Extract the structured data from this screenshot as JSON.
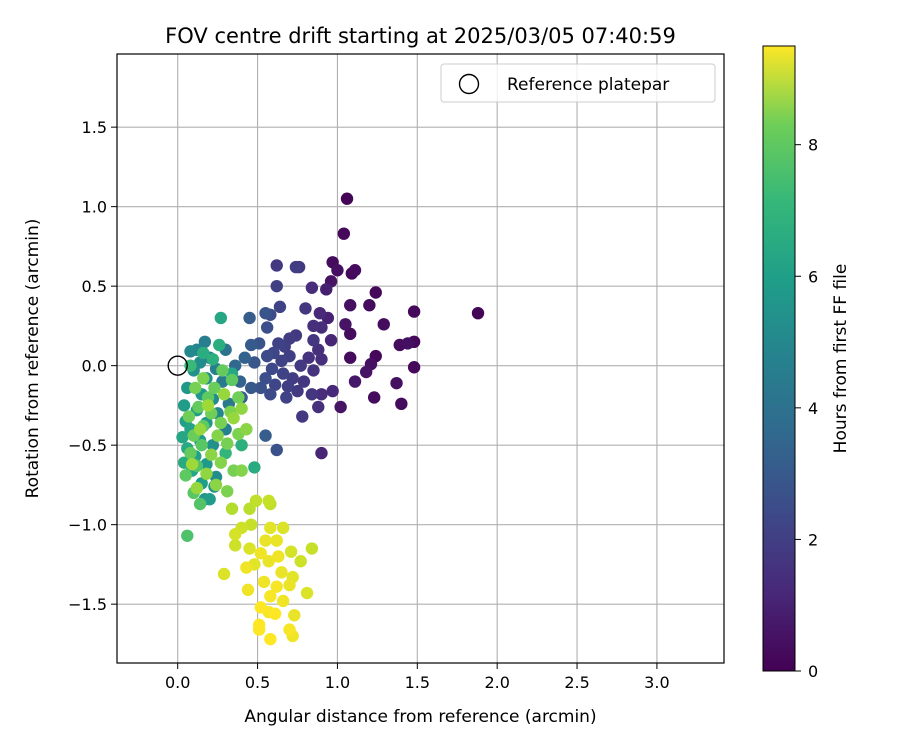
{
  "chart_data": {
    "type": "scatter",
    "title": "FOV centre drift starting at 2025/03/05 07:40:59",
    "xlabel": "Angular distance from reference (arcmin)",
    "ylabel": "Rotation from reference (arcmin)",
    "xlim": [
      -0.38,
      3.42
    ],
    "ylim": [
      -1.87,
      1.96
    ],
    "xticks": [
      "0.0",
      "0.5",
      "1.0",
      "1.5",
      "2.0",
      "2.5",
      "3.0"
    ],
    "xtick_values": [
      0,
      0.5,
      1,
      1.5,
      2,
      2.5,
      3
    ],
    "yticks": [
      "−1.5",
      "−1.0",
      "−0.5",
      "0.0",
      "0.5",
      "1.0",
      "1.5"
    ],
    "ytick_values": [
      -1.5,
      -1,
      -0.5,
      0,
      0.5,
      1,
      1.5
    ],
    "grid": true,
    "legend": {
      "position": "top-right",
      "entries": [
        "Reference platepar"
      ]
    },
    "reference_point": {
      "x": 0,
      "y": 0
    },
    "colorbar": {
      "label": "Hours from first FF file",
      "colormap": "viridis",
      "range": [
        0,
        9.5
      ],
      "ticks": [
        "0",
        "2",
        "4",
        "6",
        "8"
      ],
      "tick_values": [
        0,
        2,
        4,
        6,
        8
      ]
    },
    "points": [
      {
        "x": 1.06,
        "y": 1.05,
        "h": 0.1
      },
      {
        "x": 1.04,
        "y": 0.83,
        "h": 0.2
      },
      {
        "x": 0.97,
        "y": 0.65,
        "h": 0.3
      },
      {
        "x": 1.0,
        "y": 0.6,
        "h": 0.4
      },
      {
        "x": 1.09,
        "y": 0.58,
        "h": 0.2
      },
      {
        "x": 1.11,
        "y": 0.6,
        "h": 0.3
      },
      {
        "x": 0.96,
        "y": 0.53,
        "h": 0.5
      },
      {
        "x": 0.93,
        "y": 0.48,
        "h": 0.8
      },
      {
        "x": 1.24,
        "y": 0.46,
        "h": 0.2
      },
      {
        "x": 1.2,
        "y": 0.38,
        "h": 0.3
      },
      {
        "x": 1.08,
        "y": 0.38,
        "h": 0.4
      },
      {
        "x": 1.88,
        "y": 0.33,
        "h": 0.1
      },
      {
        "x": 1.48,
        "y": 0.34,
        "h": 0.2
      },
      {
        "x": 1.29,
        "y": 0.26,
        "h": 0.3
      },
      {
        "x": 1.05,
        "y": 0.26,
        "h": 0.5
      },
      {
        "x": 1.08,
        "y": 0.2,
        "h": 0.3
      },
      {
        "x": 1.48,
        "y": 0.15,
        "h": 0.2
      },
      {
        "x": 1.44,
        "y": 0.14,
        "h": 0.4
      },
      {
        "x": 1.39,
        "y": 0.13,
        "h": 0.3
      },
      {
        "x": 1.24,
        "y": 0.06,
        "h": 0.2
      },
      {
        "x": 1.08,
        "y": 0.05,
        "h": 0.3
      },
      {
        "x": 1.21,
        "y": 0.01,
        "h": 0.4
      },
      {
        "x": 1.48,
        "y": -0.01,
        "h": 0.2
      },
      {
        "x": 1.18,
        "y": -0.04,
        "h": 0.5
      },
      {
        "x": 1.11,
        "y": -0.1,
        "h": 0.6
      },
      {
        "x": 1.37,
        "y": -0.11,
        "h": 0.4
      },
      {
        "x": 1.23,
        "y": -0.2,
        "h": 0.3
      },
      {
        "x": 1.4,
        "y": -0.24,
        "h": 0.3
      },
      {
        "x": 1.02,
        "y": -0.26,
        "h": 0.5
      },
      {
        "x": 0.9,
        "y": -0.55,
        "h": 1.0
      },
      {
        "x": 0.62,
        "y": 0.63,
        "h": 1.6
      },
      {
        "x": 0.76,
        "y": 0.62,
        "h": 1.5
      },
      {
        "x": 0.74,
        "y": 0.62,
        "h": 1.7
      },
      {
        "x": 0.62,
        "y": 0.5,
        "h": 1.8
      },
      {
        "x": 0.84,
        "y": 0.49,
        "h": 1.2
      },
      {
        "x": 0.64,
        "y": 0.37,
        "h": 1.9
      },
      {
        "x": 0.8,
        "y": 0.36,
        "h": 1.5
      },
      {
        "x": 0.89,
        "y": 0.33,
        "h": 1.1
      },
      {
        "x": 0.94,
        "y": 0.3,
        "h": 0.9
      },
      {
        "x": 0.55,
        "y": 0.33,
        "h": 2.5
      },
      {
        "x": 0.58,
        "y": 0.32,
        "h": 2.2
      },
      {
        "x": 0.45,
        "y": 0.3,
        "h": 2.8
      },
      {
        "x": 0.85,
        "y": 0.25,
        "h": 1.3
      },
      {
        "x": 0.9,
        "y": 0.24,
        "h": 1.2
      },
      {
        "x": 0.56,
        "y": 0.24,
        "h": 2.3
      },
      {
        "x": 0.74,
        "y": 0.19,
        "h": 1.6
      },
      {
        "x": 0.7,
        "y": 0.17,
        "h": 1.7
      },
      {
        "x": 0.85,
        "y": 0.16,
        "h": 1.5
      },
      {
        "x": 0.96,
        "y": 0.16,
        "h": 1.0
      },
      {
        "x": 0.63,
        "y": 0.14,
        "h": 1.9
      },
      {
        "x": 0.51,
        "y": 0.14,
        "h": 2.5
      },
      {
        "x": 0.46,
        "y": 0.13,
        "h": 2.7
      },
      {
        "x": 0.67,
        "y": 0.12,
        "h": 1.8
      },
      {
        "x": 0.88,
        "y": 0.1,
        "h": 1.3
      },
      {
        "x": 0.6,
        "y": 0.08,
        "h": 2.0
      },
      {
        "x": 0.56,
        "y": 0.06,
        "h": 2.2
      },
      {
        "x": 0.7,
        "y": 0.06,
        "h": 1.8
      },
      {
        "x": 0.82,
        "y": 0.05,
        "h": 1.4
      },
      {
        "x": 0.9,
        "y": 0.04,
        "h": 1.3
      },
      {
        "x": 0.65,
        "y": 0.03,
        "h": 1.9
      },
      {
        "x": 0.48,
        "y": 0.02,
        "h": 2.6
      },
      {
        "x": 0.77,
        "y": 0.0,
        "h": 1.6
      },
      {
        "x": 0.59,
        "y": -0.02,
        "h": 2.1
      },
      {
        "x": 0.85,
        "y": -0.03,
        "h": 1.4
      },
      {
        "x": 0.66,
        "y": -0.05,
        "h": 1.9
      },
      {
        "x": 0.55,
        "y": -0.08,
        "h": 2.3
      },
      {
        "x": 0.72,
        "y": -0.08,
        "h": 1.7
      },
      {
        "x": 0.79,
        "y": -0.1,
        "h": 1.5
      },
      {
        "x": 0.61,
        "y": -0.12,
        "h": 2.0
      },
      {
        "x": 0.69,
        "y": -0.13,
        "h": 1.8
      },
      {
        "x": 0.52,
        "y": -0.14,
        "h": 2.4
      },
      {
        "x": 0.75,
        "y": -0.16,
        "h": 1.6
      },
      {
        "x": 0.84,
        "y": -0.18,
        "h": 1.5
      },
      {
        "x": 0.58,
        "y": -0.18,
        "h": 2.2
      },
      {
        "x": 0.68,
        "y": -0.2,
        "h": 1.9
      },
      {
        "x": 0.97,
        "y": -0.16,
        "h": 1.1
      },
      {
        "x": 0.9,
        "y": -0.18,
        "h": 1.2
      },
      {
        "x": 0.88,
        "y": -0.26,
        "h": 1.3
      },
      {
        "x": 0.78,
        "y": -0.32,
        "h": 1.6
      },
      {
        "x": 0.46,
        "y": -0.14,
        "h": 2.6
      },
      {
        "x": 0.4,
        "y": -0.2,
        "h": 2.8
      },
      {
        "x": 0.39,
        "y": -0.1,
        "h": 3.0
      },
      {
        "x": 0.42,
        "y": 0.05,
        "h": 3.0
      },
      {
        "x": 0.36,
        "y": 0.0,
        "h": 3.2
      },
      {
        "x": 0.3,
        "y": 0.1,
        "h": 3.6
      },
      {
        "x": 0.55,
        "y": -0.44,
        "h": 2.8
      },
      {
        "x": 0.62,
        "y": -0.53,
        "h": 2.4
      },
      {
        "x": 0.17,
        "y": 0.15,
        "h": 4.0
      },
      {
        "x": 0.12,
        "y": 0.1,
        "h": 4.3
      },
      {
        "x": 0.08,
        "y": 0.09,
        "h": 4.5
      },
      {
        "x": 0.2,
        "y": 0.05,
        "h": 4.2
      },
      {
        "x": 0.14,
        "y": 0.02,
        "h": 4.6
      },
      {
        "x": 0.24,
        "y": -0.02,
        "h": 4.1
      },
      {
        "x": 0.1,
        "y": -0.03,
        "h": 4.8
      },
      {
        "x": 0.18,
        "y": -0.08,
        "h": 4.7
      },
      {
        "x": 0.28,
        "y": -0.1,
        "h": 3.9
      },
      {
        "x": 0.06,
        "y": -0.14,
        "h": 5.0
      },
      {
        "x": 0.15,
        "y": -0.18,
        "h": 5.1
      },
      {
        "x": 0.22,
        "y": -0.21,
        "h": 4.6
      },
      {
        "x": 0.32,
        "y": -0.24,
        "h": 3.8
      },
      {
        "x": 0.04,
        "y": -0.25,
        "h": 5.2
      },
      {
        "x": 0.12,
        "y": -0.28,
        "h": 5.3
      },
      {
        "x": 0.25,
        "y": -0.3,
        "h": 4.4
      },
      {
        "x": 0.05,
        "y": -0.35,
        "h": 5.4
      },
      {
        "x": 0.18,
        "y": -0.36,
        "h": 5.0
      },
      {
        "x": 0.08,
        "y": -0.4,
        "h": 5.5
      },
      {
        "x": 0.3,
        "y": -0.4,
        "h": 4.2
      },
      {
        "x": 0.03,
        "y": -0.45,
        "h": 5.6
      },
      {
        "x": 0.14,
        "y": -0.47,
        "h": 5.2
      },
      {
        "x": 0.22,
        "y": -0.5,
        "h": 4.8
      },
      {
        "x": 0.06,
        "y": -0.52,
        "h": 5.7
      },
      {
        "x": 0.11,
        "y": -0.57,
        "h": 5.4
      },
      {
        "x": 0.04,
        "y": -0.61,
        "h": 5.8
      },
      {
        "x": 0.18,
        "y": -0.62,
        "h": 5.1
      },
      {
        "x": 0.09,
        "y": -0.66,
        "h": 5.6
      },
      {
        "x": 0.24,
        "y": -0.7,
        "h": 4.6
      },
      {
        "x": 0.15,
        "y": -0.74,
        "h": 5.3
      },
      {
        "x": 0.23,
        "y": -0.76,
        "h": 4.8
      },
      {
        "x": 0.17,
        "y": -0.84,
        "h": 5.0
      },
      {
        "x": 0.2,
        "y": -0.84,
        "h": 5.2
      },
      {
        "x": 0.27,
        "y": 0.3,
        "h": 5.6
      },
      {
        "x": 0.16,
        "y": 0.08,
        "h": 5.9
      },
      {
        "x": 0.22,
        "y": 0.04,
        "h": 6.0
      },
      {
        "x": 0.08,
        "y": 0.0,
        "h": 6.4
      },
      {
        "x": 0.34,
        "y": -0.05,
        "h": 5.6
      },
      {
        "x": 0.26,
        "y": 0.13,
        "h": 5.9
      },
      {
        "x": 0.4,
        "y": -0.5,
        "h": 6.0
      },
      {
        "x": 0.48,
        "y": -0.64,
        "h": 5.8
      },
      {
        "x": 0.3,
        "y": -0.55,
        "h": 6.2
      },
      {
        "x": 0.06,
        "y": -1.07,
        "h": 6.8
      },
      {
        "x": 0.14,
        "y": -0.87,
        "h": 6.9
      },
      {
        "x": 0.1,
        "y": -0.8,
        "h": 7.0
      },
      {
        "x": 0.05,
        "y": -0.69,
        "h": 7.1
      },
      {
        "x": 0.12,
        "y": -0.63,
        "h": 6.9
      },
      {
        "x": 0.08,
        "y": -0.55,
        "h": 7.2
      },
      {
        "x": 0.15,
        "y": -0.5,
        "h": 7.0
      },
      {
        "x": 0.1,
        "y": -0.44,
        "h": 7.3
      },
      {
        "x": 0.16,
        "y": -0.38,
        "h": 7.1
      },
      {
        "x": 0.07,
        "y": -0.32,
        "h": 7.4
      },
      {
        "x": 0.13,
        "y": -0.26,
        "h": 7.2
      },
      {
        "x": 0.19,
        "y": -0.2,
        "h": 7.1
      },
      {
        "x": 0.11,
        "y": -0.14,
        "h": 7.5
      },
      {
        "x": 0.16,
        "y": -0.08,
        "h": 7.6
      },
      {
        "x": 0.23,
        "y": -0.14,
        "h": 7.3
      },
      {
        "x": 0.28,
        "y": -0.03,
        "h": 7.2
      },
      {
        "x": 0.34,
        "y": -0.09,
        "h": 7.1
      },
      {
        "x": 0.21,
        "y": -0.3,
        "h": 7.4
      },
      {
        "x": 0.27,
        "y": -0.36,
        "h": 7.5
      },
      {
        "x": 0.33,
        "y": -0.29,
        "h": 7.6
      },
      {
        "x": 0.38,
        "y": -0.2,
        "h": 7.4
      },
      {
        "x": 0.25,
        "y": -0.44,
        "h": 7.7
      },
      {
        "x": 0.31,
        "y": -0.49,
        "h": 7.5
      },
      {
        "x": 0.38,
        "y": -0.43,
        "h": 7.6
      },
      {
        "x": 0.21,
        "y": -0.56,
        "h": 7.8
      },
      {
        "x": 0.27,
        "y": -0.61,
        "h": 7.7
      },
      {
        "x": 0.35,
        "y": -0.66,
        "h": 7.5
      },
      {
        "x": 0.18,
        "y": -0.68,
        "h": 7.9
      },
      {
        "x": 0.24,
        "y": -0.75,
        "h": 7.8
      },
      {
        "x": 0.31,
        "y": -0.79,
        "h": 7.6
      },
      {
        "x": 0.4,
        "y": -0.66,
        "h": 7.7
      },
      {
        "x": 0.43,
        "y": -0.4,
        "h": 7.8
      },
      {
        "x": 0.12,
        "y": -0.77,
        "h": 8.0
      },
      {
        "x": 0.09,
        "y": -0.62,
        "h": 8.1
      },
      {
        "x": 0.14,
        "y": -0.4,
        "h": 8.0
      },
      {
        "x": 0.19,
        "y": -0.25,
        "h": 8.1
      },
      {
        "x": 0.35,
        "y": -0.33,
        "h": 8.0
      },
      {
        "x": 0.29,
        "y": -0.18,
        "h": 8.0
      },
      {
        "x": 0.4,
        "y": -0.27,
        "h": 7.9
      },
      {
        "x": 0.34,
        "y": -0.9,
        "h": 8.4
      },
      {
        "x": 0.45,
        "y": -0.9,
        "h": 8.5
      },
      {
        "x": 0.49,
        "y": -0.85,
        "h": 8.6
      },
      {
        "x": 0.57,
        "y": -0.85,
        "h": 8.7
      },
      {
        "x": 0.58,
        "y": -0.87,
        "h": 8.6
      },
      {
        "x": 0.4,
        "y": -1.02,
        "h": 8.8
      },
      {
        "x": 0.46,
        "y": -1.0,
        "h": 8.7
      },
      {
        "x": 0.36,
        "y": -1.06,
        "h": 8.9
      },
      {
        "x": 0.36,
        "y": -1.13,
        "h": 8.8
      },
      {
        "x": 0.45,
        "y": -1.15,
        "h": 9.0
      },
      {
        "x": 0.58,
        "y": -1.02,
        "h": 9.1
      },
      {
        "x": 0.62,
        "y": -1.1,
        "h": 9.2
      },
      {
        "x": 0.66,
        "y": -1.02,
        "h": 9.0
      },
      {
        "x": 0.52,
        "y": -1.18,
        "h": 9.3
      },
      {
        "x": 0.57,
        "y": -1.23,
        "h": 9.2
      },
      {
        "x": 0.43,
        "y": -1.27,
        "h": 9.3
      },
      {
        "x": 0.48,
        "y": -1.25,
        "h": 9.1
      },
      {
        "x": 0.65,
        "y": -1.3,
        "h": 9.2
      },
      {
        "x": 0.71,
        "y": -1.17,
        "h": 8.9
      },
      {
        "x": 0.77,
        "y": -1.23,
        "h": 8.8
      },
      {
        "x": 0.84,
        "y": -1.15,
        "h": 8.7
      },
      {
        "x": 0.29,
        "y": -1.31,
        "h": 9.0
      },
      {
        "x": 0.54,
        "y": -1.36,
        "h": 9.3
      },
      {
        "x": 0.62,
        "y": -1.39,
        "h": 9.4
      },
      {
        "x": 0.72,
        "y": -1.33,
        "h": 9.1
      },
      {
        "x": 0.7,
        "y": -1.38,
        "h": 9.2
      },
      {
        "x": 0.44,
        "y": -1.41,
        "h": 9.3
      },
      {
        "x": 0.58,
        "y": -1.45,
        "h": 9.4
      },
      {
        "x": 0.66,
        "y": -1.48,
        "h": 9.3
      },
      {
        "x": 0.81,
        "y": -1.43,
        "h": 9.0
      },
      {
        "x": 0.52,
        "y": -1.52,
        "h": 9.5
      },
      {
        "x": 0.57,
        "y": -1.55,
        "h": 9.4
      },
      {
        "x": 0.61,
        "y": -1.56,
        "h": 9.5
      },
      {
        "x": 0.73,
        "y": -1.57,
        "h": 9.2
      },
      {
        "x": 0.51,
        "y": -1.63,
        "h": 9.5
      },
      {
        "x": 0.51,
        "y": -1.66,
        "h": 9.5
      },
      {
        "x": 0.7,
        "y": -1.66,
        "h": 9.4
      },
      {
        "x": 0.72,
        "y": -1.7,
        "h": 9.3
      },
      {
        "x": 0.58,
        "y": -1.72,
        "h": 9.5
      },
      {
        "x": 0.63,
        "y": -1.2,
        "h": 9.3
      },
      {
        "x": 0.55,
        "y": -1.1,
        "h": 9.2
      }
    ]
  }
}
